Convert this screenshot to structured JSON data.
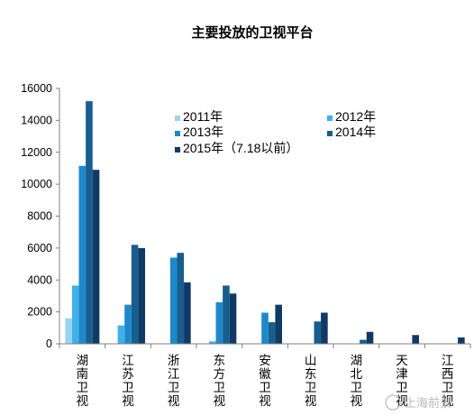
{
  "chart_data": {
    "type": "bar",
    "title": "主要投放的卫视平台",
    "xlabel": "",
    "ylabel": "",
    "ylim": [
      0,
      16000
    ],
    "yticks": [
      "0",
      "2000",
      "4000",
      "6000",
      "8000",
      "10000",
      "12000",
      "14000",
      "16000"
    ],
    "categories": [
      "湖南卫视",
      "江苏卫视",
      "浙江卫视",
      "东方卫视",
      "安徽卫视",
      "山东卫视",
      "湖北卫视",
      "天津卫视",
      "江西卫视"
    ],
    "legend_position": "upper-right",
    "grid": false,
    "series": [
      {
        "name": "2011年",
        "color": "#99d5f2",
        "values": [
          1600,
          0,
          0,
          0,
          0,
          0,
          0,
          0,
          0
        ]
      },
      {
        "name": "2012年",
        "color": "#41b0ea",
        "values": [
          3650,
          1150,
          0,
          150,
          0,
          0,
          0,
          0,
          0
        ]
      },
      {
        "name": "2013年",
        "color": "#1e88cc",
        "values": [
          11150,
          2450,
          5400,
          2600,
          1950,
          0,
          0,
          0,
          0
        ]
      },
      {
        "name": "2014年",
        "color": "#175e8e",
        "values": [
          15200,
          6200,
          5700,
          3650,
          1350,
          1400,
          250,
          0,
          0
        ]
      },
      {
        "name": "2015年（7.18以前）",
        "color": "#0f3a66",
        "values": [
          10900,
          6000,
          3850,
          3150,
          2450,
          1950,
          750,
          550,
          400
        ]
      }
    ]
  },
  "watermark": "上海前景"
}
